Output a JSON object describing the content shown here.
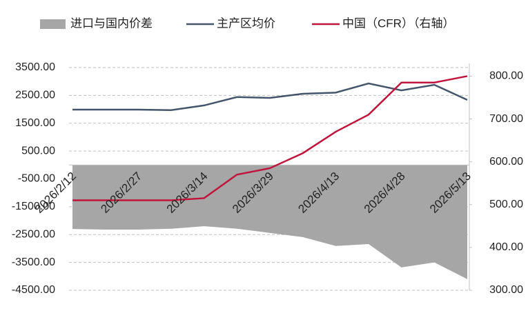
{
  "chart_data": {
    "type": "line",
    "categories": [
      "2026/2/12",
      null,
      "2026/2/27",
      null,
      "2026/3/14",
      null,
      "2026/3/29",
      null,
      "2026/4/13",
      null,
      "2026/4/28",
      null,
      "2026/5/13"
    ],
    "series": [
      {
        "name": "进口与国内价差",
        "color": "#a6a6a6",
        "style": "area",
        "values": [
          -2300,
          -2320,
          -2320,
          -2290,
          -2200,
          -2290,
          -2440,
          -2590,
          -2910,
          -2840,
          -3680,
          -3500,
          -4100
        ]
      },
      {
        "name": "主产区均价",
        "color": "#44546a",
        "style": "line",
        "values": [
          1990,
          1990,
          1990,
          1970,
          2140,
          2440,
          2410,
          2560,
          2600,
          2930,
          2680,
          2880,
          2340
        ]
      },
      {
        "name": "中国（CFR）（右轴）",
        "color": "#c0143c",
        "style": "line",
        "axis": "y2",
        "values": [
          510,
          510,
          510,
          510,
          515,
          570,
          585,
          620,
          670,
          710,
          785,
          785,
          800
        ]
      }
    ],
    "ylim": [
      -4500,
      3500
    ],
    "yticks": [
      {
        "value": 3500,
        "label": "3500.00"
      },
      {
        "value": 2500,
        "label": "2500.00"
      },
      {
        "value": 1500,
        "label": "1500.00"
      },
      {
        "value": 500,
        "label": "500.00"
      },
      {
        "value": -500,
        "label": "-500.00"
      },
      {
        "value": -1500,
        "label": "-1500.00"
      },
      {
        "value": -2500,
        "label": "-2500.00"
      },
      {
        "value": -3500,
        "label": "-3500.00"
      },
      {
        "value": -4500,
        "label": "-4500.00"
      }
    ],
    "y2lim": [
      300,
      820
    ],
    "y2ticks": [
      {
        "value": 800,
        "label": "800.00"
      },
      {
        "value": 700,
        "label": "700.00"
      },
      {
        "value": 600,
        "label": "600.00"
      },
      {
        "value": 500,
        "label": "500.00"
      },
      {
        "value": 400,
        "label": "400.00"
      },
      {
        "value": 300,
        "label": "300.00"
      }
    ],
    "grid": true
  }
}
